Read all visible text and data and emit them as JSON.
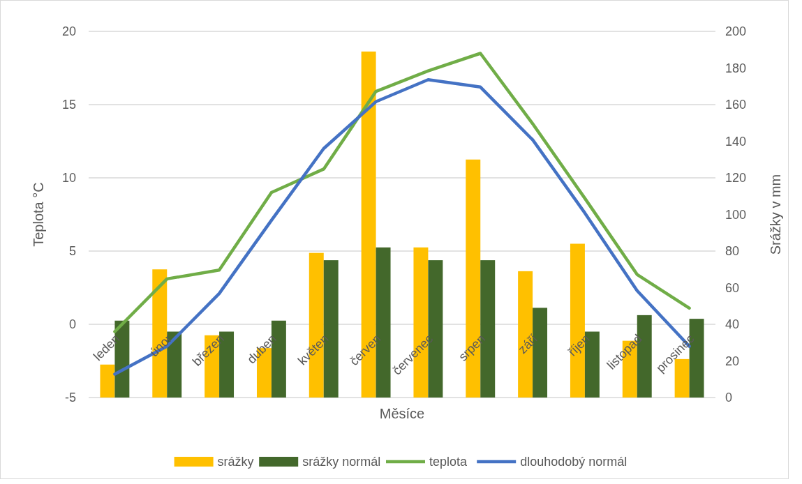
{
  "chart_data": {
    "type": "bar",
    "xlabel": "Měsíce",
    "ylabel": "Teplota °C",
    "y2label": "Srážky v  mm",
    "categories": [
      "leden",
      "únor",
      "březen",
      "duben",
      "květen",
      "červen",
      "červenec",
      "srpen",
      "září",
      "říjen",
      "listopad",
      "prosinec"
    ],
    "series": [
      {
        "name": "srážky",
        "axis": "y2",
        "color": "#ffc000",
        "values": [
          18,
          70,
          34,
          27,
          79,
          189,
          82,
          130,
          69,
          84,
          31,
          21
        ]
      },
      {
        "name": "srážky normál",
        "axis": "y2",
        "color": "#43682b",
        "values": [
          42,
          36,
          36,
          42,
          75,
          82,
          75,
          75,
          49,
          36,
          45,
          43
        ]
      },
      {
        "name": "teplota",
        "type": "line",
        "color": "#70ad47",
        "values": [
          -0.5,
          3.1,
          3.7,
          9.0,
          10.6,
          15.9,
          17.3,
          18.5,
          13.7,
          8.6,
          3.4,
          1.1
        ]
      },
      {
        "name": "dlouhodobý normál",
        "type": "line",
        "color": "#4472c4",
        "values": [
          -3.4,
          -1.5,
          2.1,
          7.1,
          12.0,
          15.2,
          16.7,
          16.2,
          12.6,
          7.6,
          2.3,
          -1.5
        ]
      }
    ],
    "ylim": [
      -5,
      20
    ],
    "yticks": [
      -5,
      0,
      5,
      10,
      15,
      20
    ],
    "y2lim": [
      0,
      200
    ],
    "y2ticks": [
      0,
      20,
      40,
      60,
      80,
      100,
      120,
      140,
      160,
      180,
      200
    ],
    "grid": "y",
    "legend": "bottom",
    "marker": "none",
    "line_style": "solid"
  }
}
